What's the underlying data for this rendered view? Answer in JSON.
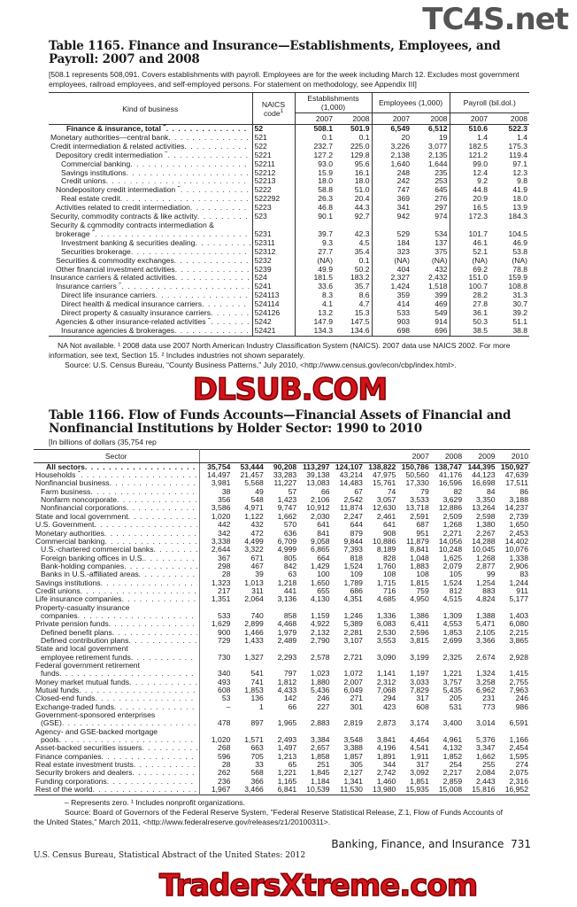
{
  "watermarks": {
    "top": "TC4S.net",
    "middle": "DLSUB.COM",
    "bottom": "TradersXtreme.com"
  },
  "table1165": {
    "title": "Table 1165. Finance and Insurance—Establishments, Employees, and Payroll: 2007 and 2008",
    "note": "[508.1 represents 508,091. Covers establishments with payroll. Employees are for the week including March 12. Excludes most government employees, railroad employees, and self-employed persons. For statement on methodology, see Appendix III]",
    "headers": {
      "kind": "Kind of business",
      "naics": "NAICS code",
      "naics_sup": "1",
      "establishments": "Establishments (1,000)",
      "employees": "Employees (1,000)",
      "payroll": "Payroll (bil.dol.)",
      "years": [
        "2007",
        "2008",
        "2007",
        "2008",
        "2007",
        "2008"
      ]
    },
    "rows": [
      {
        "label": "Finance & insurance, total",
        "sup": "2",
        "code": "52",
        "bold": true,
        "indent": 3,
        "values": [
          "508.1",
          "501.9",
          "6,549",
          "6,512",
          "510.6",
          "522.3"
        ]
      },
      {
        "label": "Monetary authorities—central bank",
        "code": "521",
        "indent": 0,
        "values": [
          "0.1",
          "0.1",
          "20",
          "19",
          "1.4",
          "1.4"
        ]
      },
      {
        "label": "Credit intermediation & related activities",
        "code": "522",
        "indent": 0,
        "values": [
          "232.7",
          "225.0",
          "3,226",
          "3,077",
          "182.5",
          "175.3"
        ]
      },
      {
        "label": "Depository credit intermediation",
        "sup": "2",
        "code": "5221",
        "indent": 1,
        "values": [
          "127.2",
          "129.8",
          "2,138",
          "2,135",
          "121.2",
          "119.4"
        ]
      },
      {
        "label": "Commercial banking",
        "code": "52211",
        "indent": 2,
        "values": [
          "93.0",
          "95.6",
          "1,640",
          "1,644",
          "99.0",
          "97.1"
        ]
      },
      {
        "label": "Savings institutions",
        "code": "52212",
        "indent": 2,
        "values": [
          "15.9",
          "16.1",
          "248",
          "235",
          "12.4",
          "12.3"
        ]
      },
      {
        "label": "Credit unions",
        "code": "52213",
        "indent": 2,
        "values": [
          "18.0",
          "18.0",
          "242",
          "253",
          "9.2",
          "9.8"
        ]
      },
      {
        "label": "Nondepository credit intermediation",
        "sup": "2",
        "code": "5222",
        "indent": 1,
        "values": [
          "58.8",
          "51.0",
          "747",
          "645",
          "44.8",
          "41.9"
        ]
      },
      {
        "label": "Real estate credit",
        "code": "522292",
        "indent": 2,
        "values": [
          "26.3",
          "20.4",
          "369",
          "276",
          "20.9",
          "18.0"
        ]
      },
      {
        "label": "Activities related to credit intermediation",
        "code": "5223",
        "indent": 1,
        "values": [
          "46.8",
          "44.3",
          "341",
          "297",
          "16.5",
          "13.9"
        ]
      },
      {
        "label": "Security, commodity contracts & like activity",
        "code": "523",
        "indent": 0,
        "values": [
          "90.1",
          "92.7",
          "942",
          "974",
          "172.3",
          "184.3"
        ]
      },
      {
        "label_line1": "Security & commodity contracts intermediation &",
        "label": "brokerage",
        "sup": "2",
        "code": "5231",
        "indent": 1,
        "values": [
          "39.7",
          "42.3",
          "529",
          "534",
          "101.7",
          "104.5"
        ]
      },
      {
        "label": "Investment banking & securities dealing",
        "code": "52311",
        "indent": 2,
        "values": [
          "9.3",
          "4.5",
          "184",
          "137",
          "46.1",
          "46.9"
        ]
      },
      {
        "label": "Securities brokerage",
        "code": "52312",
        "indent": 2,
        "values": [
          "27.7",
          "35.4",
          "323",
          "375",
          "52.1",
          "53.8"
        ]
      },
      {
        "label": "Securities & commodity exchanges",
        "code": "5232",
        "indent": 1,
        "values": [
          "(NA)",
          "0.1",
          "(NA)",
          "(NA)",
          "(NA)",
          "(NA)"
        ]
      },
      {
        "label": "Other financial investment activities",
        "code": "5239",
        "indent": 1,
        "values": [
          "49.9",
          "50.2",
          "404",
          "432",
          "69.2",
          "78.8"
        ]
      },
      {
        "label": "Insurance carriers & related activities",
        "code": "524",
        "indent": 0,
        "values": [
          "181.5",
          "183.2",
          "2,327",
          "2,432",
          "151.0",
          "159.9"
        ]
      },
      {
        "label": "Insurance carriers",
        "sup": "2",
        "code": "5241",
        "indent": 1,
        "values": [
          "33.6",
          "35.7",
          "1,424",
          "1,518",
          "100.7",
          "108.8"
        ]
      },
      {
        "label": "Direct life insurance carriers",
        "code": "524113",
        "indent": 2,
        "values": [
          "8.3",
          "8.6",
          "359",
          "399",
          "28.2",
          "31.3"
        ]
      },
      {
        "label": "Direct health & medical insurance carriers",
        "code": "524114",
        "indent": 2,
        "values": [
          "4.1",
          "4.7",
          "414",
          "469",
          "27.8",
          "30.7"
        ]
      },
      {
        "label": "Direct property & casualty insurance carriers",
        "code": "524126",
        "indent": 2,
        "values": [
          "13.2",
          "15.3",
          "533",
          "549",
          "36.1",
          "39.2"
        ]
      },
      {
        "label": "Agencies & other insurance-related activities",
        "sup": "2",
        "code": "5242",
        "indent": 1,
        "values": [
          "147.9",
          "147.5",
          "903",
          "914",
          "50.3",
          "51.1"
        ]
      },
      {
        "label": "Insurance agencies & brokerages",
        "code": "52421",
        "indent": 2,
        "values": [
          "134.3",
          "134.6",
          "698",
          "696",
          "38.5",
          "38.8"
        ]
      }
    ],
    "footnote": "NA Not available. ¹ 2008 data use 2007 North American Industry Classification System (NAICS). 2007 data use NAICS 2002. For more information, see text, Section 15. ² Includes industries not shown separately.",
    "source": "Source: U.S. Census Bureau, “County Business Patterns,” July 2010, <http://www.census.gov/econ/cbp/index.html>."
  },
  "table1166": {
    "title": "Table 1166. Flow of Funds Accounts—Financial Assets of Financial and Nonfinancial Institutions by Holder Sector: 1990 to 2010",
    "note": "[In billions of dollars (35,754 rep",
    "headers": {
      "sector": "Sector",
      "years": [
        "",
        "",
        "",
        "",
        "",
        "",
        "2007",
        "2008",
        "2009",
        "2010"
      ]
    },
    "rows": [
      {
        "label": "All sectors",
        "bold": true,
        "indent": 2,
        "values": [
          "35,754",
          "53,444",
          "90,208",
          "113,297",
          "124,107",
          "138,822",
          "150,786",
          "138,747",
          "144,395",
          "150,927"
        ]
      },
      {
        "label": "Households",
        "sup": "1",
        "indent": 0,
        "values": [
          "14,497",
          "21,457",
          "33,283",
          "39,138",
          "43,214",
          "47,975",
          "50,560",
          "41,176",
          "44,123",
          "47,639"
        ]
      },
      {
        "label": "Nonfinancial business",
        "indent": 0,
        "values": [
          "3,981",
          "5,568",
          "11,227",
          "13,083",
          "14,483",
          "15,761",
          "17,330",
          "16,596",
          "16,698",
          "17,511"
        ]
      },
      {
        "label": "Farm business",
        "indent": 1,
        "values": [
          "38",
          "49",
          "57",
          "66",
          "67",
          "74",
          "79",
          "82",
          "84",
          "86"
        ]
      },
      {
        "label": "Nonfarm noncorporate",
        "indent": 1,
        "values": [
          "356",
          "548",
          "1,423",
          "2,106",
          "2,542",
          "3,057",
          "3,533",
          "3,629",
          "3,350",
          "3,188"
        ]
      },
      {
        "label": "Nonfinancial corporations",
        "indent": 1,
        "values": [
          "3,586",
          "4,971",
          "9,747",
          "10,912",
          "11,874",
          "12,630",
          "13,718",
          "12,886",
          "13,264",
          "14,237"
        ]
      },
      {
        "label": "State and local government",
        "indent": 0,
        "values": [
          "1,020",
          "1,122",
          "1,662",
          "2,030",
          "2,247",
          "2,461",
          "2,591",
          "2,509",
          "2,598",
          "2,739"
        ]
      },
      {
        "label": "U.S. Government",
        "indent": 0,
        "values": [
          "442",
          "432",
          "570",
          "641",
          "644",
          "641",
          "687",
          "1,268",
          "1,380",
          "1,650"
        ]
      },
      {
        "label": "Monetary authorities",
        "indent": 0,
        "values": [
          "342",
          "472",
          "636",
          "841",
          "879",
          "908",
          "951",
          "2,271",
          "2,267",
          "2,453"
        ]
      },
      {
        "label": "Commercial banking",
        "indent": 0,
        "values": [
          "3,338",
          "4,499",
          "6,709",
          "9,058",
          "9,844",
          "10,886",
          "11,879",
          "14,056",
          "14,288",
          "14,402"
        ]
      },
      {
        "label": "U.S.-chartered commercial banks",
        "indent": 1,
        "values": [
          "2,644",
          "3,322",
          "4,999",
          "6,865",
          "7,393",
          "8,189",
          "8,841",
          "10,248",
          "10,045",
          "10,076"
        ]
      },
      {
        "label": "Foreign banking offices in U.S.",
        "indent": 1,
        "values": [
          "367",
          "671",
          "805",
          "664",
          "818",
          "828",
          "1,048",
          "1,625",
          "1,268",
          "1,338"
        ]
      },
      {
        "label": "Bank-holding companies",
        "indent": 1,
        "values": [
          "298",
          "467",
          "842",
          "1,429",
          "1,524",
          "1,760",
          "1,883",
          "2,079",
          "2,877",
          "2,906"
        ]
      },
      {
        "label": "Banks in U.S.-affiliated areas",
        "indent": 1,
        "values": [
          "28",
          "39",
          "63",
          "100",
          "109",
          "108",
          "108",
          "105",
          "99",
          "83"
        ]
      },
      {
        "label": "Savings institutions",
        "indent": 0,
        "values": [
          "1,323",
          "1,013",
          "1,218",
          "1,650",
          "1,789",
          "1,715",
          "1,815",
          "1,524",
          "1,254",
          "1,244"
        ]
      },
      {
        "label": "Credit unions",
        "indent": 0,
        "values": [
          "217",
          "311",
          "441",
          "655",
          "686",
          "716",
          "759",
          "812",
          "883",
          "911"
        ]
      },
      {
        "label": "Life insurance companies",
        "indent": 0,
        "values": [
          "1,351",
          "2,064",
          "3,136",
          "4,130",
          "4,351",
          "4,685",
          "4,950",
          "4,515",
          "4,824",
          "5,177"
        ]
      },
      {
        "label_line1": "Property-casualty insurance",
        "label": "companies",
        "indent": 1,
        "values": [
          "533",
          "740",
          "858",
          "1,159",
          "1,246",
          "1,336",
          "1,386",
          "1,309",
          "1,388",
          "1,403"
        ]
      },
      {
        "label": "Private pension funds",
        "indent": 0,
        "values": [
          "1,629",
          "2,899",
          "4,468",
          "4,922",
          "5,389",
          "6,083",
          "6,411",
          "4,553",
          "5,471",
          "6,080"
        ]
      },
      {
        "label": "Defined benefit plans",
        "indent": 1,
        "values": [
          "900",
          "1,466",
          "1,979",
          "2,132",
          "2,281",
          "2,530",
          "2,596",
          "1,853",
          "2,105",
          "2,215"
        ]
      },
      {
        "label": "Defined contribution plans",
        "indent": 1,
        "values": [
          "729",
          "1,433",
          "2,489",
          "2,790",
          "3,107",
          "3,553",
          "3,815",
          "2,699",
          "3,366",
          "3,865"
        ]
      },
      {
        "label_line1": "State and local government",
        "label": "employee retirement funds",
        "indent": 1,
        "values": [
          "730",
          "1,327",
          "2,293",
          "2,578",
          "2,721",
          "3,090",
          "3,199",
          "2,325",
          "2,674",
          "2,928"
        ]
      },
      {
        "label_line1": "Federal government retirement",
        "label": "funds",
        "indent": 1,
        "values": [
          "340",
          "541",
          "797",
          "1,023",
          "1,072",
          "1,141",
          "1,197",
          "1,221",
          "1,324",
          "1,415"
        ]
      },
      {
        "label": "Money market mutual funds",
        "indent": 0,
        "values": [
          "493",
          "741",
          "1,812",
          "1,880",
          "2,007",
          "2,312",
          "3,033",
          "3,757",
          "3,258",
          "2,755"
        ]
      },
      {
        "label": "Mutual funds",
        "indent": 0,
        "values": [
          "608",
          "1,853",
          "4,433",
          "5,436",
          "6,049",
          "7,068",
          "7,829",
          "5,435",
          "6,962",
          "7,963"
        ]
      },
      {
        "label": "Closed-end funds",
        "indent": 0,
        "values": [
          "53",
          "136",
          "142",
          "246",
          "271",
          "294",
          "317",
          "205",
          "231",
          "246"
        ]
      },
      {
        "label": "Exchange-traded funds",
        "indent": 0,
        "values": [
          "–",
          "1",
          "66",
          "227",
          "301",
          "423",
          "608",
          "531",
          "773",
          "986"
        ]
      },
      {
        "label_line1": "Government-sponsored enterprises",
        "label": "(GSE)",
        "indent": 1,
        "values": [
          "478",
          "897",
          "1,965",
          "2,883",
          "2,819",
          "2,873",
          "3,174",
          "3,400",
          "3,014",
          "6,591"
        ]
      },
      {
        "label_line1": "Agency- and GSE-backed mortgage",
        "label": "pools",
        "indent": 1,
        "values": [
          "1,020",
          "1,571",
          "2,493",
          "3,384",
          "3,548",
          "3,841",
          "4,464",
          "4,961",
          "5,376",
          "1,166"
        ]
      },
      {
        "label": "Asset-backed securities issuers",
        "indent": 0,
        "values": [
          "268",
          "663",
          "1,497",
          "2,657",
          "3,388",
          "4,196",
          "4,541",
          "4,132",
          "3,347",
          "2,454"
        ]
      },
      {
        "label": "Finance companies",
        "indent": 0,
        "values": [
          "596",
          "705",
          "1,213",
          "1,858",
          "1,857",
          "1,891",
          "1,911",
          "1,852",
          "1,662",
          "1,595"
        ]
      },
      {
        "label": "Real estate investment trusts",
        "indent": 0,
        "values": [
          "28",
          "33",
          "65",
          "251",
          "305",
          "344",
          "317",
          "254",
          "255",
          "274"
        ]
      },
      {
        "label": "Security brokers and dealers",
        "indent": 0,
        "values": [
          "262",
          "568",
          "1,221",
          "1,845",
          "2,127",
          "2,742",
          "3,092",
          "2,217",
          "2,084",
          "2,075"
        ]
      },
      {
        "label": "Funding corporations",
        "indent": 0,
        "values": [
          "236",
          "366",
          "1,165",
          "1,184",
          "1,341",
          "1,460",
          "1,851",
          "2,859",
          "2,443",
          "2,316"
        ]
      },
      {
        "label": "Rest of the world",
        "indent": 0,
        "values": [
          "1,967",
          "3,466",
          "6,841",
          "10,539",
          "11,530",
          "13,980",
          "15,935",
          "15,008",
          "15,816",
          "16,952"
        ]
      }
    ],
    "footnote": "– Represents zero. ¹ Includes nonprofit organizations.",
    "source": "Source: Board of Governors of the Federal Reserve System, \"Federal Reserve Statistical Release, Z.1, Flow of Funds Accounts of the United States,\" March 2011, <http://www.federalreserve.gov/releases/z1/20100311>."
  },
  "footer": {
    "section": "Banking, Finance, and Insurance",
    "page": "731",
    "publisher": "U.S. Census Bureau, Statistical Abstract of the United States: 2012"
  }
}
